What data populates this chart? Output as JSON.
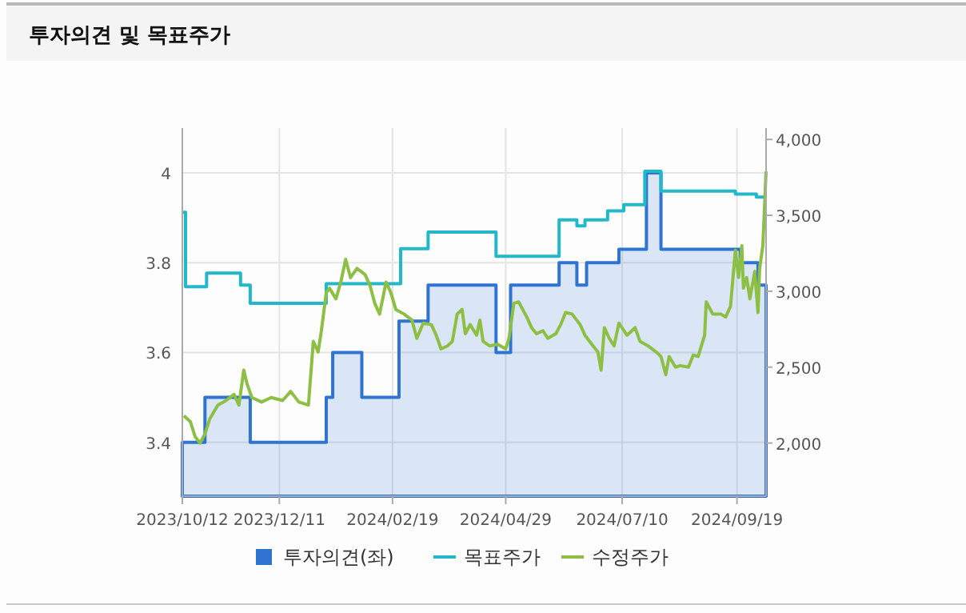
{
  "chart_data": {
    "type": "line",
    "title": "투자의견 및 목표주가",
    "legend": "bottom",
    "grid": true,
    "xlim": [
      "2023-10-12",
      "2024-10-07"
    ],
    "xticks": [
      {
        "value": "2023-10-12",
        "label": "2023/10/12"
      },
      {
        "value": "2023-12-11",
        "label": "2023/12/11"
      },
      {
        "value": "2024-02-19",
        "label": "2024/02/19"
      },
      {
        "value": "2024-04-29",
        "label": "2024/04/29"
      },
      {
        "value": "2024-07-10",
        "label": "2024/07/10"
      },
      {
        "value": "2024-09-19",
        "label": "2024/09/19"
      }
    ],
    "ylim": [
      3.28,
      4.1
    ],
    "yticks": [
      3.4,
      3.6,
      3.8,
      4
    ],
    "y2lim": [
      1650,
      4075
    ],
    "y2ticks": [
      {
        "value": 2000,
        "label": "2,000"
      },
      {
        "value": 2500,
        "label": "2,500"
      },
      {
        "value": 3000,
        "label": "3,000"
      },
      {
        "value": 3500,
        "label": "3,500"
      },
      {
        "value": 4000,
        "label": "4,000"
      }
    ],
    "series": [
      {
        "name": "투자의견(좌)",
        "type": "area",
        "color": "#2f74d0",
        "x": [
          "2023-10-12",
          "2023-10-26",
          "2023-10-26",
          "2023-11-23",
          "2023-11-23",
          "2024-01-09",
          "2024-01-09",
          "2024-01-13",
          "2024-01-13",
          "2024-01-31",
          "2024-01-31",
          "2024-02-23",
          "2024-02-23",
          "2024-03-12",
          "2024-03-12",
          "2024-04-23",
          "2024-04-23",
          "2024-05-02",
          "2024-05-02",
          "2024-06-01",
          "2024-06-01",
          "2024-06-12",
          "2024-06-12",
          "2024-06-18",
          "2024-06-18",
          "2024-07-08",
          "2024-07-08",
          "2024-07-25",
          "2024-07-25",
          "2024-08-03",
          "2024-08-03",
          "2024-09-21",
          "2024-09-21",
          "2024-10-02",
          "2024-10-02",
          "2024-10-07",
          "2024-10-07"
        ],
        "values": [
          3.4,
          3.4,
          3.5,
          3.5,
          3.4,
          3.4,
          3.5,
          3.5,
          3.6,
          3.6,
          3.5,
          3.5,
          3.67,
          3.67,
          3.75,
          3.75,
          3.6,
          3.6,
          3.75,
          3.75,
          3.8,
          3.8,
          3.75,
          3.75,
          3.8,
          3.8,
          3.83,
          3.83,
          4.0,
          4.0,
          3.83,
          3.83,
          3.8,
          3.8,
          3.75,
          3.75,
          3.67
        ]
      },
      {
        "name": "목표주가",
        "type": "step",
        "axis": "y2",
        "color": "#22b8c9",
        "x": [
          "2023-10-12",
          "2023-10-14",
          "2023-10-27",
          "2023-11-17",
          "2023-11-23",
          "2024-01-09",
          "2024-02-24",
          "2024-03-12",
          "2024-04-23",
          "2024-06-01",
          "2024-06-12",
          "2024-06-17",
          "2024-07-01",
          "2024-07-11",
          "2024-07-24",
          "2024-08-03",
          "2024-09-18",
          "2024-10-01",
          "2024-10-07"
        ],
        "values": [
          3520,
          3030,
          3120,
          3040,
          2920,
          3050,
          3280,
          3390,
          3230,
          3470,
          3430,
          3470,
          3530,
          3570,
          3790,
          3660,
          3640,
          3620,
          3620
        ]
      },
      {
        "name": "수정주가",
        "axis": "y2",
        "color": "#8cbf44",
        "x": [
          "2023-10-13",
          "2023-10-17",
          "2023-10-20",
          "2023-10-23",
          "2023-10-26",
          "2023-10-29",
          "2023-11-03",
          "2023-11-08",
          "2023-11-13",
          "2023-11-16",
          "2023-11-19",
          "2023-11-21",
          "2023-11-24",
          "2023-11-30",
          "2023-12-06",
          "2023-12-13",
          "2023-12-18",
          "2023-12-23",
          "2023-12-29",
          "2024-01-01",
          "2024-01-04",
          "2024-01-06",
          "2024-01-09",
          "2024-01-11",
          "2024-01-15",
          "2024-01-18",
          "2024-01-21",
          "2024-01-24",
          "2024-01-28",
          "2024-02-02",
          "2024-02-05",
          "2024-02-08",
          "2024-02-11",
          "2024-02-15",
          "2024-02-18",
          "2024-02-21",
          "2024-02-26",
          "2024-03-02",
          "2024-03-05",
          "2024-03-09",
          "2024-03-14",
          "2024-03-17",
          "2024-03-20",
          "2024-03-24",
          "2024-03-27",
          "2024-03-30",
          "2024-04-02",
          "2024-04-04",
          "2024-04-07",
          "2024-04-11",
          "2024-04-13",
          "2024-04-15",
          "2024-04-19",
          "2024-04-24",
          "2024-04-29",
          "2024-05-01",
          "2024-05-04",
          "2024-05-07",
          "2024-05-12",
          "2024-05-15",
          "2024-05-18",
          "2024-05-22",
          "2024-05-25",
          "2024-05-30",
          "2024-06-02",
          "2024-06-05",
          "2024-06-09",
          "2024-06-14",
          "2024-06-17",
          "2024-06-22",
          "2024-06-25",
          "2024-06-27",
          "2024-06-29",
          "2024-07-02",
          "2024-07-05",
          "2024-07-08",
          "2024-07-13",
          "2024-07-18",
          "2024-07-21",
          "2024-07-26",
          "2024-07-31",
          "2024-08-03",
          "2024-08-06",
          "2024-08-08",
          "2024-08-12",
          "2024-08-15",
          "2024-08-20",
          "2024-08-23",
          "2024-08-26",
          "2024-08-30",
          "2024-08-31",
          "2024-09-04",
          "2024-09-09",
          "2024-09-12",
          "2024-09-15",
          "2024-09-18",
          "2024-09-20",
          "2024-09-22",
          "2024-09-23",
          "2024-09-25",
          "2024-09-27",
          "2024-09-30",
          "2024-10-02",
          "2024-10-03",
          "2024-10-05",
          "2024-10-07"
        ],
        "values": [
          2180,
          2140,
          2040,
          2000,
          2060,
          2160,
          2250,
          2280,
          2320,
          2250,
          2480,
          2390,
          2300,
          2270,
          2300,
          2280,
          2340,
          2270,
          2250,
          2670,
          2600,
          2740,
          2990,
          3020,
          2950,
          3060,
          3210,
          3090,
          3150,
          3110,
          3040,
          2920,
          2850,
          3060,
          2990,
          2880,
          2850,
          2810,
          2690,
          2790,
          2780,
          2710,
          2620,
          2640,
          2670,
          2850,
          2880,
          2720,
          2780,
          2710,
          2810,
          2670,
          2640,
          2650,
          2620,
          2690,
          2920,
          2930,
          2830,
          2760,
          2720,
          2740,
          2690,
          2720,
          2780,
          2860,
          2850,
          2780,
          2710,
          2640,
          2600,
          2480,
          2760,
          2690,
          2640,
          2790,
          2710,
          2760,
          2670,
          2640,
          2600,
          2570,
          2450,
          2570,
          2500,
          2510,
          2500,
          2580,
          2570,
          2710,
          2930,
          2850,
          2850,
          2830,
          2900,
          3270,
          3090,
          3300,
          3020,
          3090,
          2950,
          3130,
          2860,
          3150,
          3300,
          3790
        ]
      }
    ]
  }
}
